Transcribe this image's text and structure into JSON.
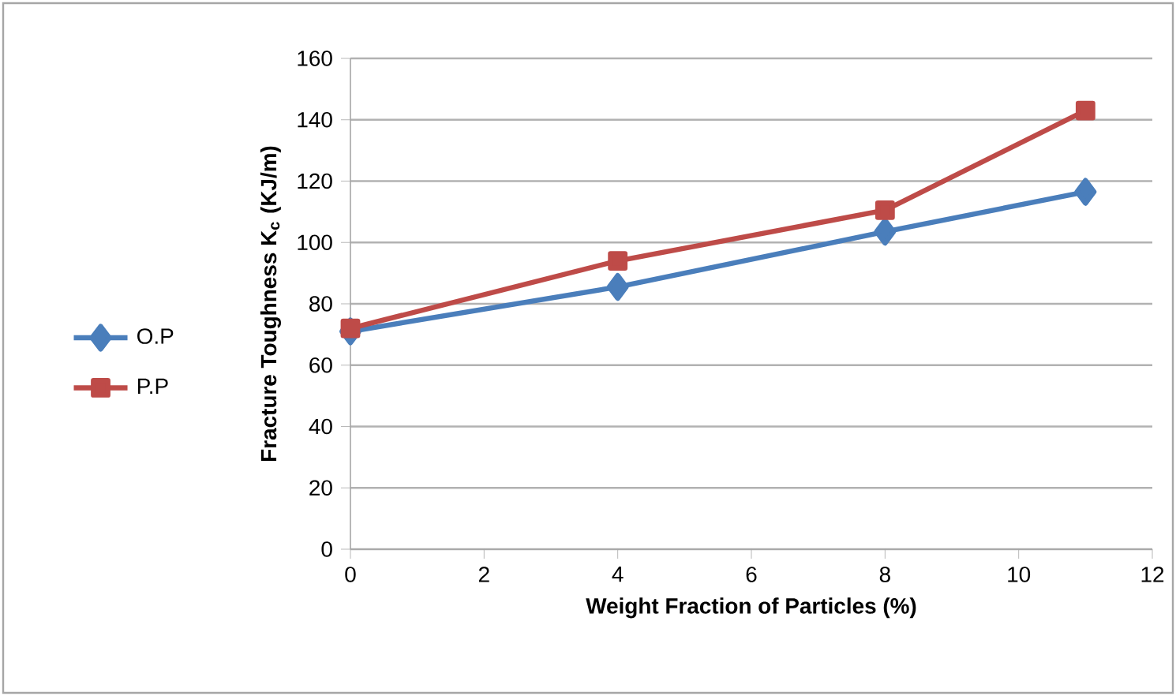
{
  "chart_data": {
    "type": "line",
    "xlabel": "Weight Fraction of Particles (%)",
    "ylabel": "Fracture Toughness K$_{c}$ (KJ/m)",
    "x": [
      0,
      4,
      8,
      11
    ],
    "series": [
      {
        "name": "O.P",
        "color": "#4a7ebb",
        "marker": "diamond",
        "values": [
          71,
          85.5,
          103.5,
          116.5
        ]
      },
      {
        "name": "P.P",
        "color": "#be4b48",
        "marker": "square",
        "values": [
          72,
          94,
          110.5,
          143
        ]
      }
    ],
    "xlim": [
      0,
      12
    ],
    "xticks": [
      0,
      2,
      4,
      6,
      8,
      10,
      12
    ],
    "ylim": [
      0,
      160
    ],
    "yticks": [
      0,
      20,
      40,
      60,
      80,
      100,
      120,
      140,
      160
    ],
    "grid": "y",
    "legend": "left",
    "line_style": "solid"
  }
}
